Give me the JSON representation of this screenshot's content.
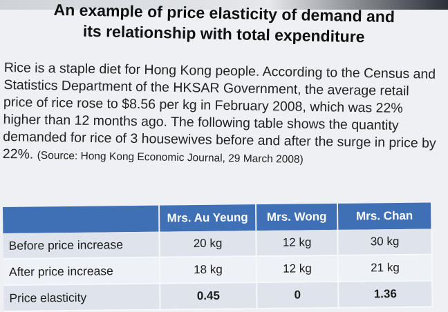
{
  "title": {
    "line1": "An example of price elasticity of demand and",
    "line2": "its relationship with total expenditure"
  },
  "paragraph": {
    "main": "Rice is a staple diet for Hong Kong people. According to the Census and Statistics Department of the HKSAR Government, the average retail price of rice rose to $8.56 per kg in February 2008, which was 22% higher than 12 months ago. The following table shows the quantity demanded for rice of 3 housewives before and after the surge in price by 22%.",
    "source": "(Source: Hong Kong Economic Journal, 29 March 2008)"
  },
  "table": {
    "headers": [
      "",
      "Mrs. Au Yeung",
      "Mrs. Wong",
      "Mrs. Chan"
    ],
    "rows": [
      {
        "label": "Before price increase",
        "values": [
          "20 kg",
          "12 kg",
          "30 kg"
        ]
      },
      {
        "label": "After price increase",
        "values": [
          "18 kg",
          "12 kg",
          "21 kg"
        ]
      },
      {
        "label": "Price elasticity",
        "values": [
          "0.45",
          "0",
          "1.36"
        ]
      }
    ]
  }
}
